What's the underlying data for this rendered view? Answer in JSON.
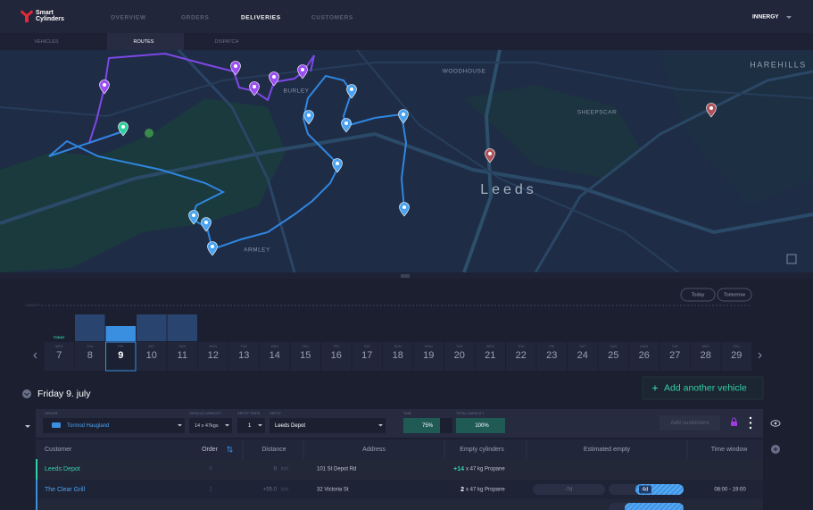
{
  "header": {
    "logo": [
      "Smart",
      "Cylinders"
    ],
    "nav": [
      "OVERVIEW",
      "ORDERS",
      "DELIVERIES",
      "CUSTOMERS"
    ],
    "account": "INNERGY"
  },
  "subnav": [
    "VEHICLES",
    "ROUTES",
    "DISPATCH"
  ],
  "map": {
    "labels": [
      "WOODHOUSE",
      "HAREHILLS",
      "BURLEY",
      "SHEEPSCAR",
      "Leeds",
      "ARMLEY"
    ]
  },
  "calendar": {
    "capacity_label": "CAPACITY",
    "today_button": "Today",
    "tomorrow_button": "Tomorrow",
    "today_tag": "TODAY",
    "days": [
      {
        "weekday": "WED",
        "day": "7"
      },
      {
        "weekday": "THU",
        "day": "8"
      },
      {
        "weekday": "FRI",
        "day": "9"
      },
      {
        "weekday": "SAT",
        "day": "10"
      },
      {
        "weekday": "SUN",
        "day": "11"
      },
      {
        "weekday": "MON",
        "day": "12"
      },
      {
        "weekday": "TUE",
        "day": "13"
      },
      {
        "weekday": "WED",
        "day": "14"
      },
      {
        "weekday": "THU",
        "day": "15"
      },
      {
        "weekday": "FRI",
        "day": "16"
      },
      {
        "weekday": "SAT",
        "day": "17"
      },
      {
        "weekday": "SUN",
        "day": "18"
      },
      {
        "weekday": "MON",
        "day": "19"
      },
      {
        "weekday": "TUE",
        "day": "20"
      },
      {
        "weekday": "WED",
        "day": "21"
      },
      {
        "weekday": "THU",
        "day": "22"
      },
      {
        "weekday": "FRI",
        "day": "23"
      },
      {
        "weekday": "SAT",
        "day": "24"
      },
      {
        "weekday": "SUN",
        "day": "25"
      },
      {
        "weekday": "MON",
        "day": "26"
      },
      {
        "weekday": "TUE",
        "day": "27"
      },
      {
        "weekday": "WED",
        "day": "28"
      },
      {
        "weekday": "THU",
        "day": "29"
      }
    ]
  },
  "section": {
    "date_title": "Friday 9. july",
    "add_vehicle": "Add another vehicle"
  },
  "vehicle": {
    "labels": [
      "DRIVER",
      "VEHICLE CAPACITY",
      "DEPOT TRIPS",
      "DEPOT",
      "TIME",
      "TOTAL CAPACITY"
    ],
    "driver": "Tormod Haugland",
    "capacity": "14 x 47kgs",
    "trips": "1",
    "depot": "Leeds Depot",
    "time": "75%",
    "total_capacity": "100%",
    "add_customers": "Add customers"
  },
  "table": {
    "headers": [
      "Customer",
      "Order",
      "Distance",
      "Address",
      "Empty cylinders",
      "Estimated empty",
      "Time window"
    ],
    "rows": [
      {
        "customer": "Leeds Depot",
        "order": "0",
        "distance": "0",
        "distance_unit": "km",
        "address": "101 St Depot Rd",
        "qty": "+14",
        "qty_unit": "x 47 kg Propane"
      },
      {
        "customer": "The Clear Grill",
        "order": "1",
        "distance": "+55.0",
        "distance_unit": "km",
        "address": "32 Victoria St",
        "qty": "2",
        "qty_unit": "x 47 kg Propane",
        "estimated": [
          "-7d",
          "4d"
        ],
        "time_window": "08:00 - 19:00"
      }
    ]
  }
}
